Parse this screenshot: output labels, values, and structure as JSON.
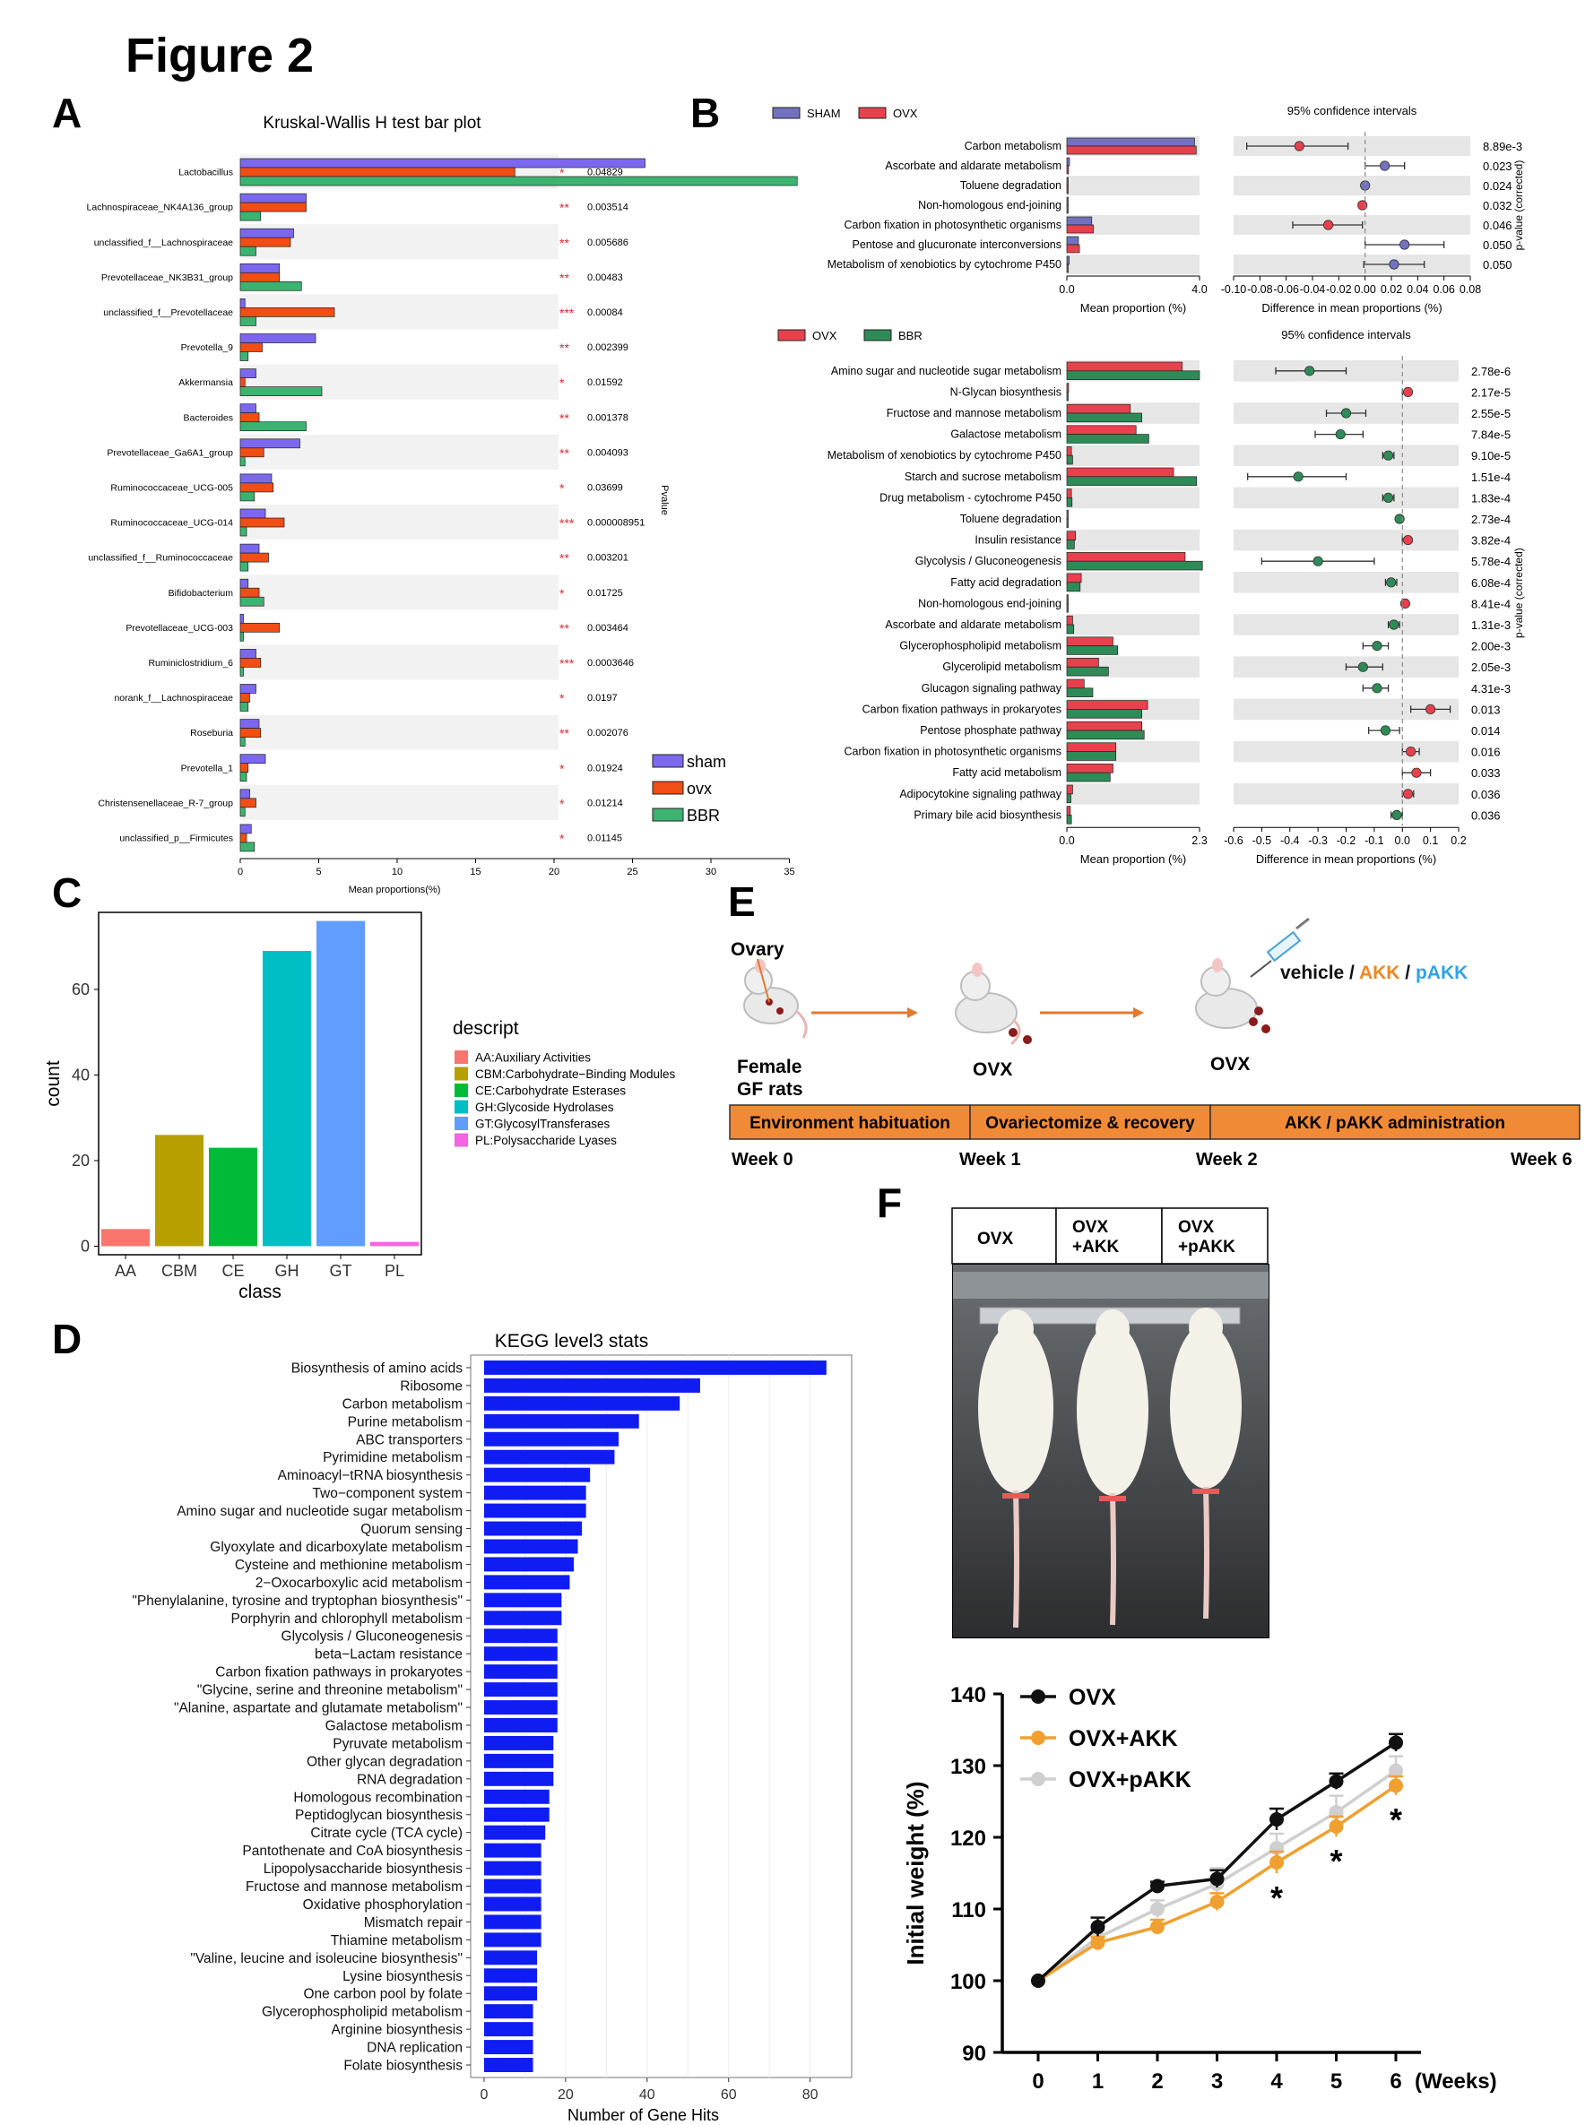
{
  "figure_title": "Figure 2",
  "panel_letters": {
    "A": "A",
    "B": "B",
    "C": "C",
    "D": "D",
    "E": "E",
    "F": "F"
  },
  "panelA": {
    "title": "Kruskal-Wallis H test bar plot",
    "xlabel": "Mean proportions(%)",
    "ylabel_right": "Pvalue",
    "xticks": [
      0,
      5,
      10,
      15,
      20,
      25,
      30,
      35
    ],
    "legend": [
      "sham",
      "ovx",
      "BBR"
    ],
    "colors": {
      "sham": "#7b68ee",
      "ovx": "#f04e14",
      "BBR": "#3cb371"
    }
  },
  "panelB": {
    "top_legend": [
      "SHAM",
      "OVX"
    ],
    "bottom_legend": [
      "OVX",
      "BBR"
    ],
    "ci_title": "95% confidence intervals",
    "xlabel_left": "Mean proportion (%)",
    "xlabel_right": "Difference in mean proportions (%)",
    "ylabel_right": "p-value (corrected)",
    "top_left_ticks": [
      "0.0",
      "4.0"
    ],
    "top_right_ticks": [
      "-0.10",
      "-0.08",
      "-0.06",
      "-0.04",
      "-0.02",
      "0.00",
      "0.02",
      "0.04",
      "0.06",
      "0.08"
    ],
    "bottom_left_ticks": [
      "0.0",
      "2.3"
    ],
    "bottom_right_ticks": [
      "-0.6",
      "-0.5",
      "-0.4",
      "-0.3",
      "-0.2",
      "-0.1",
      "0.0",
      "0.1",
      "0.2"
    ],
    "colors": {
      "SHAM": "#7272c0",
      "OVX": "#e8414d",
      "BBR": "#2e8b57"
    }
  },
  "panelC": {
    "xlabel": "class",
    "ylabel": "count",
    "legend_title": "descript",
    "yticks": [
      0,
      20,
      40,
      60
    ],
    "legend": [
      "AA:Auxiliary Activities",
      "CBM:Carbohydrate−Binding Modules",
      "CE:Carbohydrate Esterases",
      "GH:Glycoside Hydrolases",
      "GT:GlycosylTransferases",
      "PL:Polysaccharide Lyases"
    ]
  },
  "panelD": {
    "title": "KEGG level3 stats",
    "xlabel": "Number of Gene Hits",
    "xticks": [
      0,
      20,
      40,
      60,
      80
    ],
    "bar_color": "#0f1cf2"
  },
  "panelE": {
    "ovary_label": "Ovary",
    "female_label": "Female",
    "gf_label": "GF rats",
    "ovx_label": "OVX",
    "treatment": {
      "vehicle": "vehicle",
      "sep1": " / ",
      "akk": "AKK",
      "sep2": " / ",
      "pakk": "pAKK"
    },
    "stages": [
      "Environment habituation",
      "Ovariectomize & recovery",
      "AKK / pAKK administration"
    ],
    "weeks": [
      "Week 0",
      "Week 1",
      "Week 2",
      "Week 6"
    ]
  },
  "panelF": {
    "photo_labels": [
      "OVX",
      "OVX\n+AKK",
      "OVX\n+pAKK"
    ],
    "ylabel": "Initial weight (%)",
    "xunit": "(Weeks)",
    "yticks": [
      90,
      100,
      110,
      120,
      130,
      140
    ],
    "legend": [
      "OVX",
      "OVX+AKK",
      "OVX+pAKK"
    ],
    "colors": {
      "OVX": "#111111",
      "OVX+AKK": "#f0a030",
      "OVX+pAKK": "#cfcfcf"
    },
    "star": "*"
  },
  "chart_data": [
    {
      "panel": "A",
      "type": "bar",
      "orientation": "horizontal",
      "title": "Kruskal-Wallis H test bar plot",
      "xlabel": "Mean proportions(%)",
      "xlim": [
        0,
        35
      ],
      "categories": [
        "Lactobacillus",
        "Lachnospiraceae_NK4A136_group",
        "unclassified_f__Lachnospiraceae",
        "Prevotellaceae_NK3B31_group",
        "unclassified_f__Prevotellaceae",
        "Prevotella_9",
        "Akkermansia",
        "Bacteroides",
        "Prevotellaceae_Ga6A1_group",
        "Ruminococcaceae_UCG-005",
        "Ruminococcaceae_UCG-014",
        "unclassified_f__Ruminococcaceae",
        "Bifidobacterium",
        "Prevotellaceae_UCG-003",
        "Ruminiclostridium_6",
        "norank_f__Lachnospiraceae",
        "Roseburia",
        "Prevotella_1",
        "Christensenellaceae_R-7_group",
        "unclassified_p__Firmicutes"
      ],
      "series": [
        {
          "name": "sham",
          "values": [
            25.8,
            4.2,
            3.4,
            2.5,
            0.3,
            4.8,
            1.0,
            1.0,
            3.8,
            2.0,
            1.6,
            1.2,
            0.5,
            0.2,
            1.0,
            1.0,
            1.2,
            1.6,
            0.6,
            0.7
          ]
        },
        {
          "name": "ovx",
          "values": [
            17.5,
            4.2,
            3.2,
            2.5,
            6.0,
            1.4,
            0.3,
            1.2,
            1.5,
            2.1,
            2.8,
            1.8,
            1.2,
            2.5,
            1.3,
            0.6,
            1.3,
            0.5,
            1.0,
            0.4
          ]
        },
        {
          "name": "BBR",
          "values": [
            35.5,
            1.3,
            1.0,
            3.9,
            1.0,
            0.5,
            5.2,
            4.2,
            0.3,
            0.9,
            0.4,
            0.5,
            1.5,
            0.2,
            0.2,
            0.5,
            0.3,
            0.4,
            0.3,
            0.9
          ]
        }
      ],
      "significance": [
        "*",
        "**",
        "**",
        "**",
        "***",
        "**",
        "*",
        "**",
        "**",
        "*",
        "***",
        "**",
        "*",
        "**",
        "***",
        "*",
        "**",
        "*",
        "*",
        "*"
      ],
      "pvalues": [
        "0.04829",
        "0.003514",
        "0.005686",
        "0.00483",
        "0.00084",
        "0.002399",
        "0.01592",
        "0.001378",
        "0.004093",
        "0.03699",
        "0.000008951",
        "0.003201",
        "0.01725",
        "0.003464",
        "0.0003646",
        "0.0197",
        "0.002076",
        "0.01924",
        "0.01214",
        "0.01145"
      ]
    },
    {
      "panel": "B-top",
      "type": "bar",
      "orientation": "horizontal",
      "categories": [
        "Carbon metabolism",
        "Ascorbate and aldarate metabolism",
        "Toluene degradation",
        "Non-homologous end-joining",
        "Carbon fixation in photosynthetic organisms",
        "Pentose and glucuronate interconversions",
        "Metabolism of xenobiotics by cytochrome P450"
      ],
      "mean_xlim": [
        0,
        4.0
      ],
      "series": [
        {
          "name": "SHAM",
          "values": [
            3.85,
            0.08,
            0.03,
            0.03,
            0.75,
            0.35,
            0.07
          ]
        },
        {
          "name": "OVX",
          "values": [
            3.9,
            0.05,
            0.01,
            0.01,
            0.8,
            0.38,
            0.04
          ]
        }
      ],
      "diff_xlim": [
        -0.1,
        0.08
      ],
      "difference": [
        -0.05,
        0.015,
        0.0,
        -0.002,
        -0.028,
        0.03,
        0.022
      ],
      "ci_low": [
        -0.09,
        0.0,
        -0.002,
        -0.004,
        -0.055,
        0.0,
        -0.001
      ],
      "ci_high": [
        -0.013,
        0.03,
        0.002,
        0.0,
        -0.002,
        0.06,
        0.045
      ],
      "point_group": [
        "OVX",
        "SHAM",
        "SHAM",
        "OVX",
        "OVX",
        "SHAM",
        "SHAM"
      ],
      "pvalues": [
        "8.89e-3",
        "0.023",
        "0.024",
        "0.032",
        "0.046",
        "0.050",
        "0.050"
      ]
    },
    {
      "panel": "B-bottom",
      "type": "bar",
      "orientation": "horizontal",
      "categories": [
        "Amino sugar and nucleotide sugar metabolism",
        "N-Glycan biosynthesis",
        "Fructose and mannose metabolism",
        "Galactose metabolism",
        "Metabolism of xenobiotics by cytochrome P450",
        "Starch and sucrose metabolism",
        "Drug metabolism - cytochrome P450",
        "Toluene degradation",
        "Insulin resistance",
        "Glycolysis / Gluconeogenesis",
        "Fatty acid degradation",
        "Non-homologous end-joining",
        "Ascorbate and aldarate metabolism",
        "Glycerophospholipid metabolism",
        "Glycerolipid metabolism",
        "Glucagon signaling pathway",
        "Carbon fixation pathways in prokaryotes",
        "Pentose phosphate pathway",
        "Carbon fixation in photosynthetic organisms",
        "Fatty acid metabolism",
        "Adipocytokine signaling pathway",
        "Primary bile acid biosynthesis"
      ],
      "mean_xlim": [
        0,
        2.3
      ],
      "series": [
        {
          "name": "OVX",
          "values": [
            2.0,
            0.03,
            1.1,
            1.2,
            0.08,
            1.85,
            0.08,
            0.01,
            0.15,
            2.05,
            0.25,
            0.02,
            0.1,
            0.8,
            0.55,
            0.3,
            1.4,
            1.3,
            0.85,
            0.8,
            0.1,
            0.06
          ]
        },
        {
          "name": "BBR",
          "values": [
            2.3,
            0.02,
            1.3,
            1.42,
            0.1,
            2.25,
            0.09,
            0.01,
            0.13,
            2.35,
            0.23,
            0.01,
            0.12,
            0.88,
            0.72,
            0.45,
            1.3,
            1.34,
            0.85,
            0.75,
            0.07,
            0.08
          ]
        }
      ],
      "diff_xlim": [
        -0.6,
        0.2
      ],
      "difference": [
        -0.33,
        0.02,
        -0.2,
        -0.22,
        -0.05,
        -0.37,
        -0.05,
        -0.01,
        0.02,
        -0.3,
        -0.04,
        0.01,
        -0.03,
        -0.09,
        -0.14,
        -0.09,
        0.1,
        -0.06,
        0.03,
        0.05,
        0.02,
        -0.02
      ],
      "ci_low": [
        -0.45,
        0.0,
        -0.27,
        -0.31,
        -0.07,
        -0.55,
        -0.07,
        -0.02,
        0.0,
        -0.5,
        -0.06,
        0.0,
        -0.05,
        -0.14,
        -0.2,
        -0.14,
        0.03,
        -0.12,
        0.0,
        0.0,
        0.0,
        -0.04
      ],
      "ci_high": [
        -0.2,
        0.03,
        -0.13,
        -0.14,
        -0.03,
        -0.2,
        -0.03,
        0.0,
        0.03,
        -0.1,
        -0.02,
        0.02,
        -0.01,
        -0.05,
        -0.07,
        -0.05,
        0.17,
        -0.01,
        0.06,
        0.1,
        0.04,
        0.0
      ],
      "point_group": [
        "BBR",
        "OVX",
        "BBR",
        "BBR",
        "BBR",
        "BBR",
        "BBR",
        "BBR",
        "OVX",
        "BBR",
        "BBR",
        "OVX",
        "BBR",
        "BBR",
        "BBR",
        "BBR",
        "OVX",
        "BBR",
        "OVX",
        "OVX",
        "OVX",
        "BBR"
      ],
      "pvalues": [
        "2.78e-6",
        "2.17e-5",
        "2.55e-5",
        "7.84e-5",
        "9.10e-5",
        "1.51e-4",
        "1.83e-4",
        "2.73e-4",
        "3.82e-4",
        "5.78e-4",
        "6.08e-4",
        "8.41e-4",
        "1.31e-3",
        "2.00e-3",
        "2.05e-3",
        "4.31e-3",
        "0.013",
        "0.014",
        "0.016",
        "0.033",
        "0.036",
        "0.036"
      ]
    },
    {
      "panel": "C",
      "type": "bar",
      "xlabel": "class",
      "ylabel": "count",
      "ylim": [
        -2,
        78
      ],
      "categories": [
        "AA",
        "CBM",
        "CE",
        "GH",
        "GT",
        "PL"
      ],
      "values": [
        4,
        26,
        23,
        69,
        76,
        1
      ],
      "colors": [
        "#f8766d",
        "#b79f00",
        "#00ba38",
        "#00bfc4",
        "#619cff",
        "#f564e3"
      ]
    },
    {
      "panel": "D",
      "type": "bar",
      "orientation": "horizontal",
      "title": "KEGG level3 stats",
      "xlabel": "Number of Gene Hits",
      "xlim": [
        0,
        88
      ],
      "categories": [
        "Biosynthesis of amino acids",
        "Ribosome",
        "Carbon metabolism",
        "Purine metabolism",
        "ABC transporters",
        "Pyrimidine metabolism",
        "Aminoacyl−tRNA biosynthesis",
        "Two−component system",
        "Amino sugar and nucleotide sugar metabolism",
        "Quorum sensing",
        "Glyoxylate and dicarboxylate metabolism",
        "Cysteine and methionine metabolism",
        "2−Oxocarboxylic acid metabolism",
        "\"Phenylalanine, tyrosine and tryptophan biosynthesis\"",
        "Porphyrin and chlorophyll metabolism",
        "Glycolysis / Gluconeogenesis",
        "beta−Lactam resistance",
        "Carbon fixation pathways in prokaryotes",
        "\"Glycine, serine and threonine metabolism\"",
        "\"Alanine, aspartate and glutamate metabolism\"",
        "Galactose metabolism",
        "Pyruvate metabolism",
        "Other glycan degradation",
        "RNA degradation",
        "Homologous recombination",
        "Peptidoglycan biosynthesis",
        "Citrate cycle (TCA cycle)",
        "Pantothenate and CoA biosynthesis",
        "Lipopolysaccharide biosynthesis",
        "Fructose and mannose metabolism",
        "Oxidative phosphorylation",
        "Mismatch repair",
        "Thiamine metabolism",
        "\"Valine, leucine and isoleucine biosynthesis\"",
        "Lysine biosynthesis",
        "One carbon pool by folate",
        "Glycerophospholipid metabolism",
        "Arginine biosynthesis",
        "DNA replication",
        "Folate biosynthesis"
      ],
      "values": [
        84,
        53,
        48,
        38,
        33,
        32,
        26,
        25,
        25,
        24,
        23,
        22,
        21,
        19,
        19,
        18,
        18,
        18,
        18,
        18,
        18,
        17,
        17,
        17,
        16,
        16,
        15,
        14,
        14,
        14,
        14,
        14,
        14,
        13,
        13,
        13,
        12,
        12,
        12,
        12
      ]
    },
    {
      "panel": "F",
      "type": "line",
      "xlabel": "(Weeks)",
      "ylabel": "Initial weight (%)",
      "ylim": [
        90,
        140
      ],
      "x": [
        0,
        1,
        2,
        3,
        4,
        5,
        6
      ],
      "series": [
        {
          "name": "OVX",
          "values": [
            100,
            107.5,
            113.2,
            114.2,
            122.5,
            127.8,
            133.2
          ],
          "errors": [
            0,
            1.3,
            0.6,
            1.2,
            1.5,
            1.1,
            1.2
          ]
        },
        {
          "name": "OVX+AKK",
          "values": [
            100,
            105.3,
            107.5,
            111,
            116.5,
            121.5,
            127.2
          ],
          "errors": [
            0,
            0.8,
            1.0,
            1.2,
            1.5,
            1.4,
            1.3
          ]
        },
        {
          "name": "OVX+pAKK",
          "values": [
            100,
            106,
            110,
            113.5,
            118.5,
            123.5,
            129.3
          ],
          "errors": [
            0,
            1.0,
            1.2,
            2.2,
            2.0,
            2.3,
            2.0
          ]
        }
      ],
      "significance_x": [
        4,
        5,
        6
      ]
    }
  ]
}
